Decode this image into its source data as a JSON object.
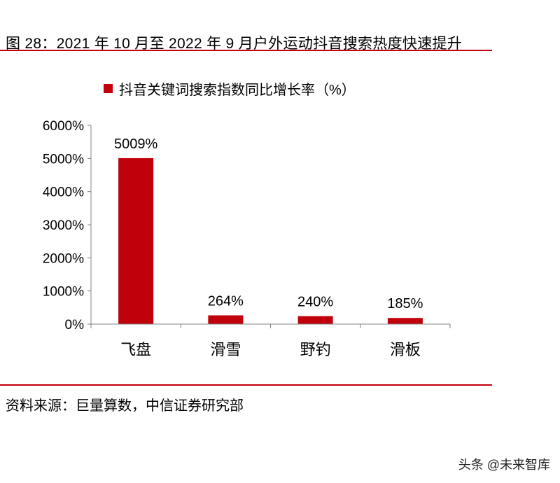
{
  "figure": {
    "title": "图 28：2021 年 10 月至 2022 年 9 月户外运动抖音搜索热度快速提升",
    "source": "资料来源：巨量算数，中信证券研究部",
    "watermark": "头条 @未来智库"
  },
  "colors": {
    "bar": "#c0000b",
    "rule": "#c0000b",
    "axis": "#808080"
  },
  "chart_data": {
    "type": "bar",
    "categories": [
      "飞盘",
      "滑雪",
      "野钓",
      "滑板"
    ],
    "series": [
      {
        "name": "抖音关键词搜索指数同比增长率（%）",
        "values": [
          5009,
          264,
          240,
          185
        ]
      }
    ],
    "data_labels": [
      "5009%",
      "264%",
      "240%",
      "185%"
    ],
    "ylim": [
      0,
      6000
    ],
    "yticks": [
      "0%",
      "1000%",
      "2000%",
      "3000%",
      "4000%",
      "5000%",
      "6000%"
    ],
    "legend_position": "top-left",
    "grid": false
  }
}
